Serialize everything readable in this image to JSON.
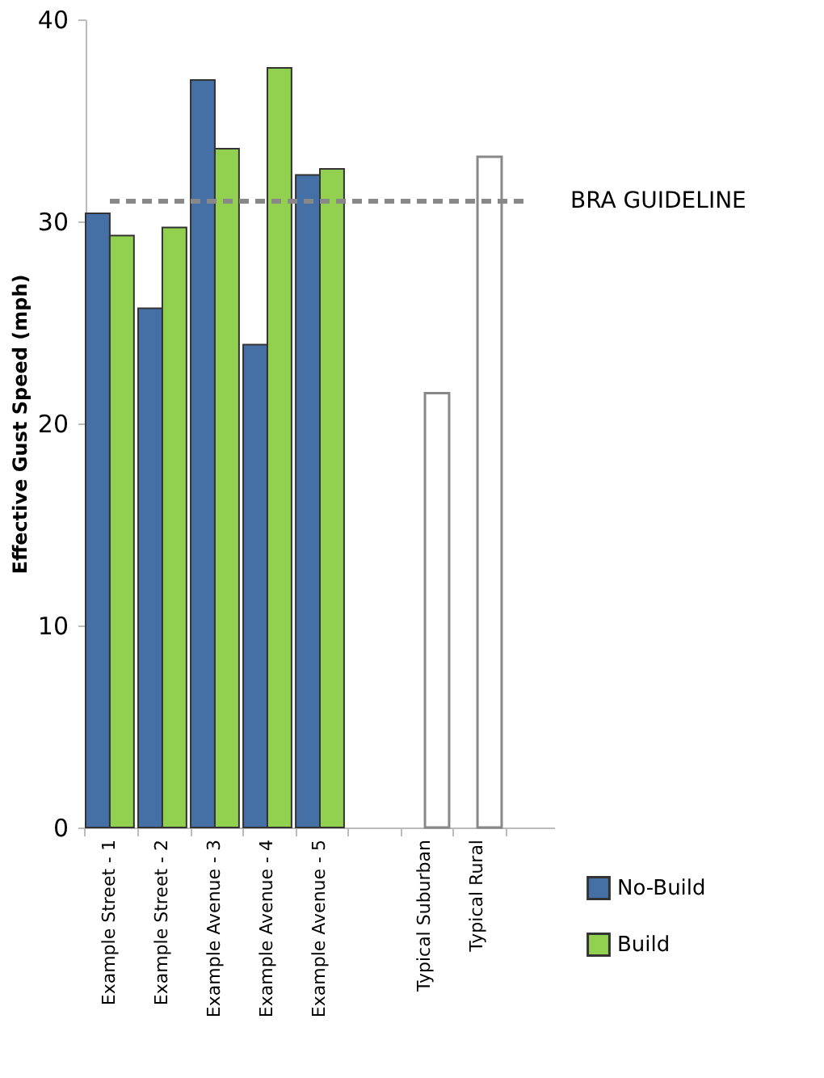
{
  "chart_data": {
    "type": "bar",
    "ylabel": "Effective Gust Speed (mph)",
    "categories": [
      "Example Street - 1",
      "Example Street - 2",
      "Example Avenue - 3",
      "Example Avenue - 4",
      "Example Avenue - 5",
      null,
      "Typical Suburban",
      "Typical Rural",
      null
    ],
    "series": [
      {
        "name": "No-Build",
        "color": "#4470a6",
        "values": [
          30.4,
          25.7,
          37.0,
          23.9,
          32.3,
          null,
          null,
          null,
          null
        ]
      },
      {
        "name": "Build",
        "color": "#92d050",
        "values": [
          29.3,
          29.7,
          33.6,
          37.6,
          32.6,
          null,
          null,
          null,
          null
        ]
      },
      {
        "color": "#ffffff",
        "values": [
          null,
          null,
          null,
          null,
          null,
          null,
          21.5,
          33.2,
          null
        ]
      }
    ],
    "ylim": [
      0,
      40
    ],
    "yticks": [
      0,
      10,
      20,
      30,
      40
    ],
    "grid": false,
    "legend": "bottom right",
    "ref_lines": [
      {
        "axis": "y",
        "value": 31.0,
        "label": "BRA GUIDELINE",
        "color": "#888888",
        "line_style": "dashed"
      }
    ]
  }
}
